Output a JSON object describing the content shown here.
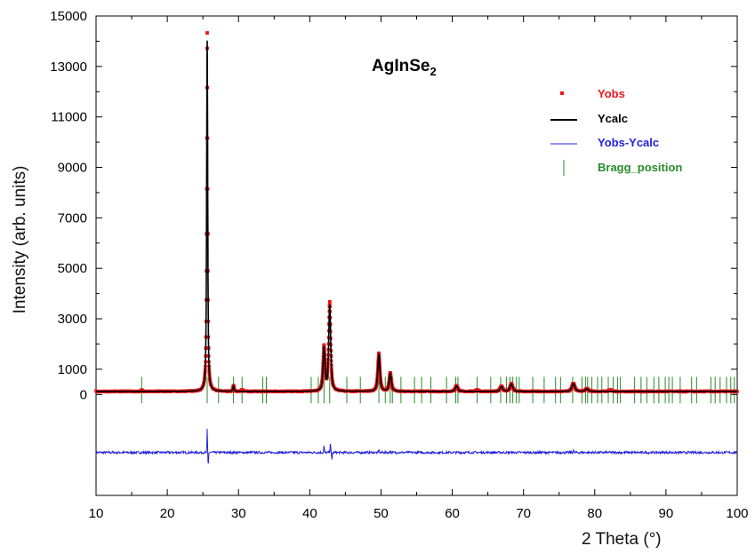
{
  "chart_data": {
    "type": "line",
    "title": "AgInSe",
    "title_subscript": "2",
    "xlabel": "2 Theta (°)",
    "ylabel": "Intensity (arb. units)",
    "xlim": [
      10,
      100
    ],
    "ylim": [
      -4000,
      15000
    ],
    "x_ticks": [
      10,
      20,
      30,
      40,
      50,
      60,
      70,
      80,
      90,
      100
    ],
    "y_ticks": [
      0,
      1000,
      3000,
      5000,
      7000,
      9000,
      11000,
      13000,
      15000
    ],
    "grid": false,
    "legend_position": "top-right",
    "colors": {
      "yobs": "#e8161b",
      "ycalc": "#000000",
      "diff": "#2222dd",
      "bragg": "#2a8a2a"
    },
    "series": [
      {
        "name": "Yobs",
        "kind": "points",
        "background": 120,
        "peaks": [
          {
            "x": 16.4,
            "y": 60
          },
          {
            "x": 25.6,
            "y": 14200
          },
          {
            "x": 29.3,
            "y": 230
          },
          {
            "x": 30.5,
            "y": 60
          },
          {
            "x": 42.0,
            "y": 1750
          },
          {
            "x": 42.8,
            "y": 3500
          },
          {
            "x": 49.7,
            "y": 1500
          },
          {
            "x": 51.3,
            "y": 730
          },
          {
            "x": 60.6,
            "y": 230
          },
          {
            "x": 63.5,
            "y": 60
          },
          {
            "x": 66.9,
            "y": 200
          },
          {
            "x": 68.3,
            "y": 300
          },
          {
            "x": 77.0,
            "y": 320
          },
          {
            "x": 78.9,
            "y": 110
          },
          {
            "x": 82.2,
            "y": 60
          }
        ]
      },
      {
        "name": "Ycalc",
        "kind": "line",
        "background": 120,
        "peaks": [
          {
            "x": 25.6,
            "y": 13900
          },
          {
            "x": 29.3,
            "y": 220
          },
          {
            "x": 42.0,
            "y": 1700
          },
          {
            "x": 42.8,
            "y": 3400
          },
          {
            "x": 49.7,
            "y": 1450
          },
          {
            "x": 51.3,
            "y": 700
          },
          {
            "x": 60.6,
            "y": 220
          },
          {
            "x": 66.9,
            "y": 190
          },
          {
            "x": 68.3,
            "y": 290
          },
          {
            "x": 77.0,
            "y": 310
          },
          {
            "x": 78.9,
            "y": 100
          }
        ]
      },
      {
        "name": "Yobs-Ycalc",
        "kind": "line",
        "baseline": -2300,
        "spikes": [
          {
            "x": 25.6,
            "y": -1400
          },
          {
            "x": 25.75,
            "y": -2900
          },
          {
            "x": 42.0,
            "y": -2000
          },
          {
            "x": 42.9,
            "y": -1850
          },
          {
            "x": 43.1,
            "y": -2650
          },
          {
            "x": 49.7,
            "y": -2150
          },
          {
            "x": 51.3,
            "y": -2200
          },
          {
            "x": 77.0,
            "y": -2180
          }
        ]
      },
      {
        "name": "Bragg_position",
        "kind": "ticks",
        "y_range": [
          -350,
          700
        ],
        "positions": [
          16.4,
          25.6,
          27.2,
          29.3,
          30.5,
          33.4,
          33.9,
          40.2,
          41.2,
          42.0,
          42.8,
          45.2,
          47.1,
          49.7,
          50.6,
          51.3,
          51.6,
          52.8,
          54.7,
          55.7,
          57.0,
          59.2,
          60.5,
          60.8,
          63.5,
          65.4,
          66.8,
          67.6,
          68.1,
          68.5,
          69.0,
          69.4,
          71.3,
          72.9,
          74.5,
          75.2,
          76.9,
          78.2,
          78.7,
          79.0,
          79.6,
          80.4,
          81.0,
          81.9,
          82.6,
          83.2,
          83.6,
          85.6,
          86.5,
          87.3,
          88.3,
          89.0,
          89.9,
          90.4,
          90.9,
          92.0,
          93.6,
          94.3,
          96.3,
          96.9,
          97.6,
          98.5,
          99.1,
          99.6
        ]
      }
    ]
  }
}
